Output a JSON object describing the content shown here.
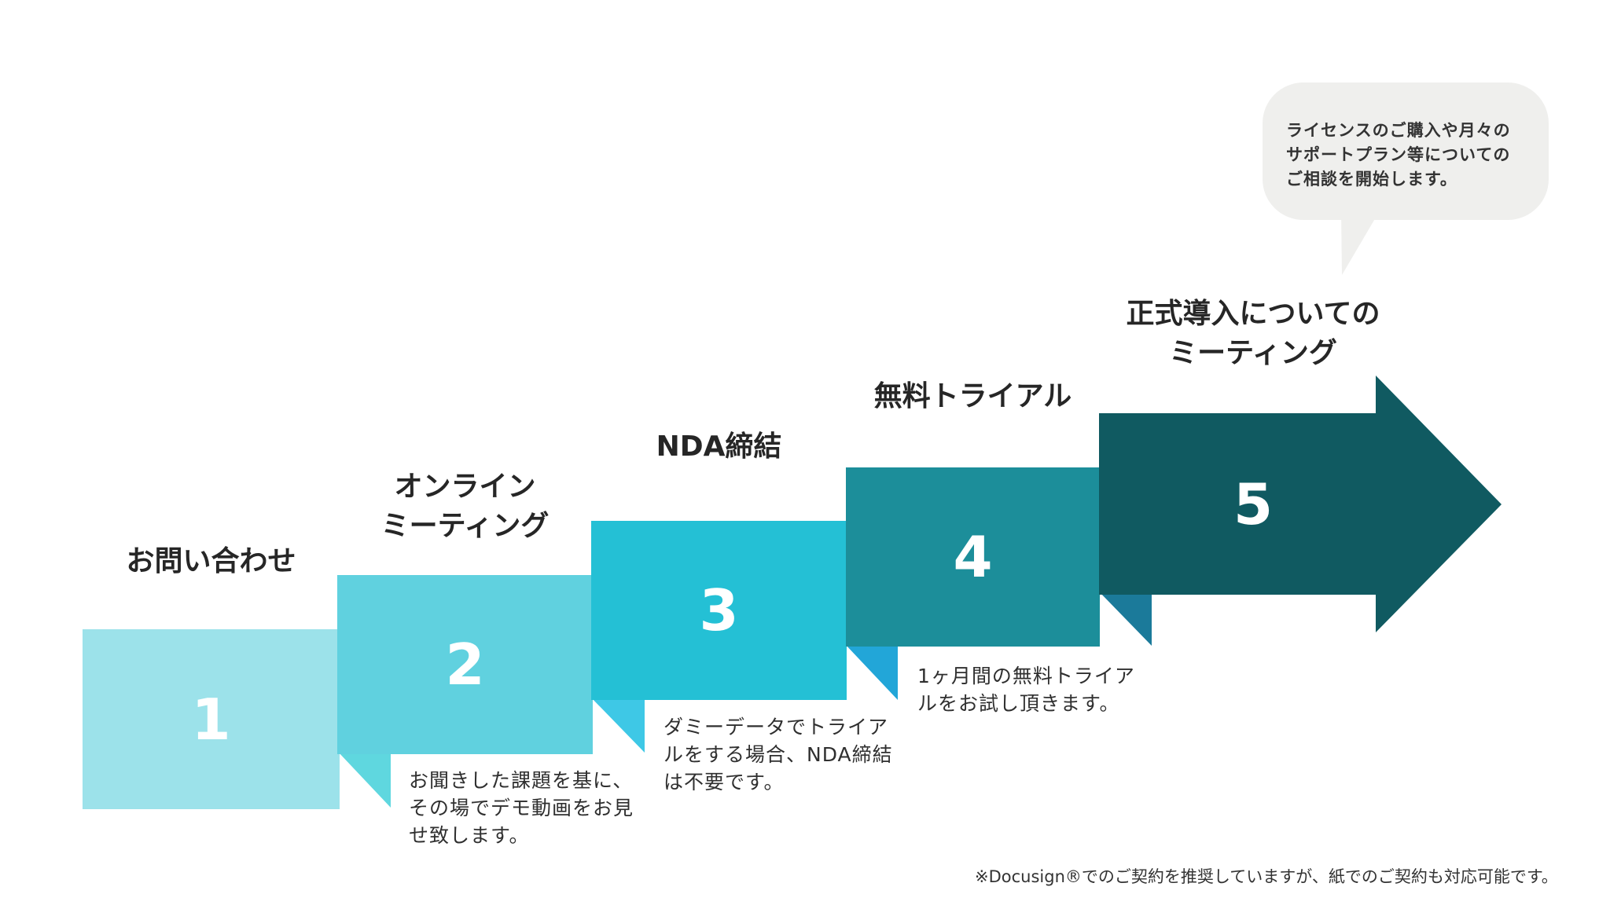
{
  "steps": [
    {
      "number": "1",
      "title": "お問い合わせ",
      "description": "",
      "color": "#9ce2ea",
      "fold_color": "#5fd7df"
    },
    {
      "number": "2",
      "title": "オンライン\nミーティング",
      "description": "お聞きした課題を基に、\nその場でデモ動画をお見\nせ致します。",
      "color": "#60d1df",
      "fold_color": "#3ec8e6"
    },
    {
      "number": "3",
      "title": "NDA締結",
      "description": "ダミーデータでトライア\nルをする場合、NDA締結\nは不要です。",
      "color": "#24c0d5",
      "fold_color": "#22a6d8"
    },
    {
      "number": "4",
      "title": "無料トライアル",
      "description": "1ヶ月間の無料トライア\nルをお試し頂きます。",
      "color": "#1c8e9a",
      "fold_color": "#1b7a9a"
    },
    {
      "number": "5",
      "title": "正式導入についての\nミーティング",
      "description": "",
      "color": "#105a61"
    }
  ],
  "bubble": {
    "text": "ライセンスのご購入や月々の\nサポートプラン等についての\nご相談を開始します。",
    "color": "#efefed"
  },
  "footnote": "※Docusign®でのご契約を推奨していますが、紙でのご契約も対応可能です。"
}
